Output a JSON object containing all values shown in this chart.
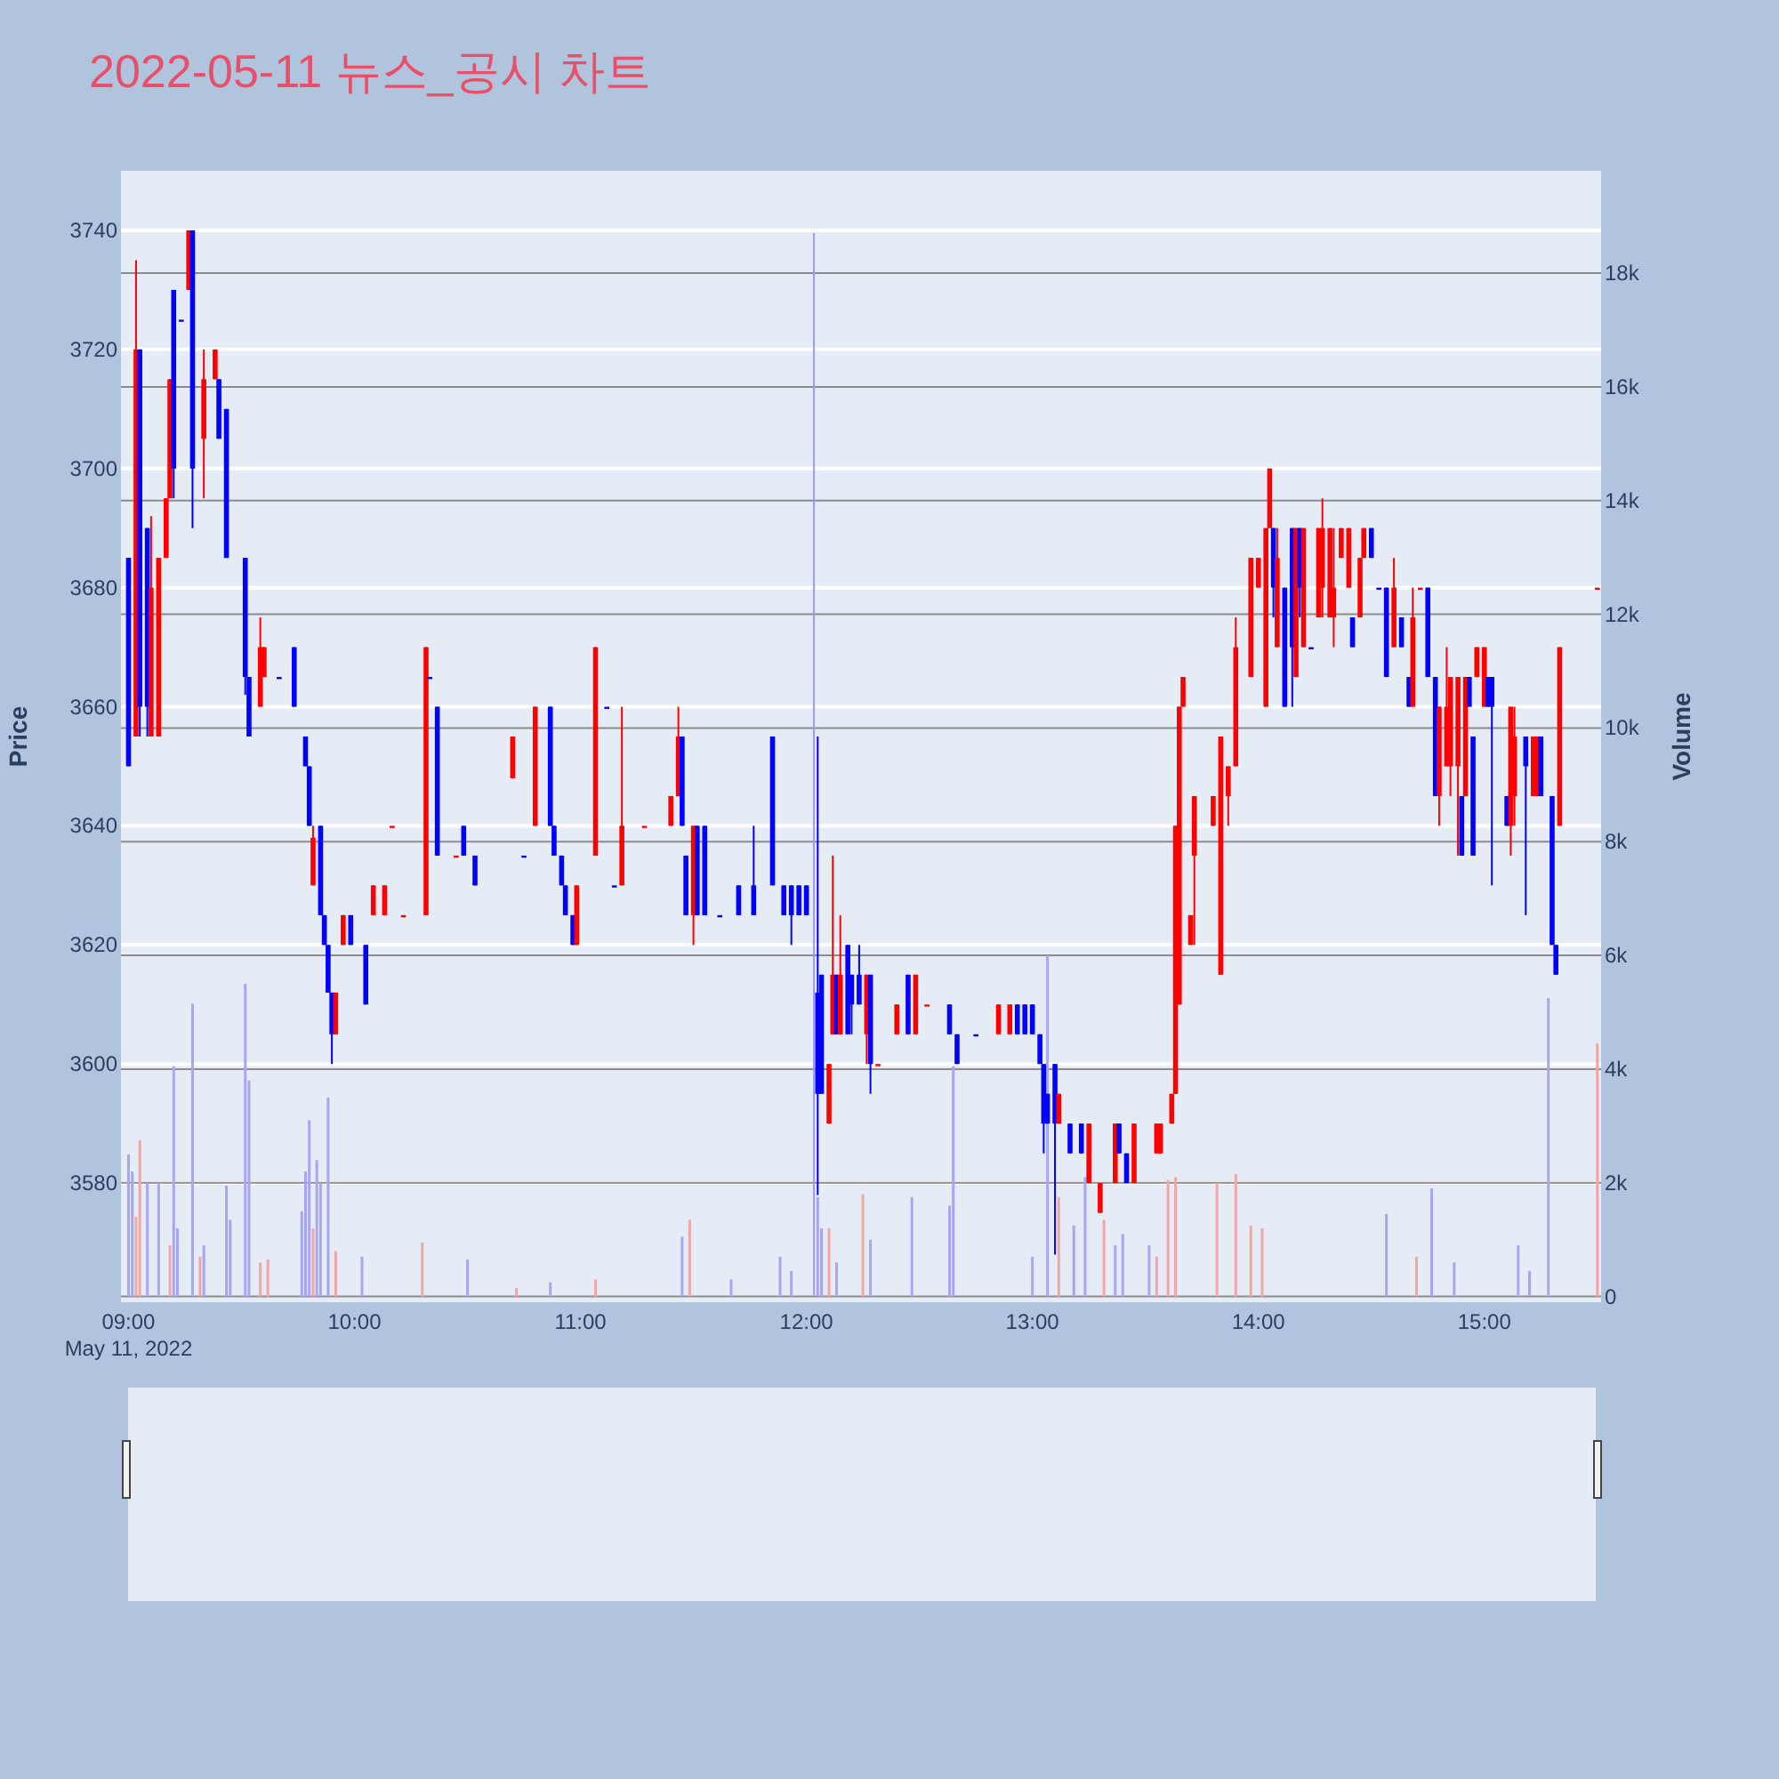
{
  "chart_data": {
    "type": "candlestick",
    "title": "2022-05-11 뉴스_공시 차트",
    "ylabel": "Price",
    "y2label": "Volume",
    "annotations": [
      "May 11, 2022"
    ],
    "xlim": [
      "2022-05-11T08:58",
      "2022-05-11T15:31"
    ],
    "xticks": [
      {
        "value": "2022-05-11T09:00",
        "label": "09:00"
      },
      {
        "value": "2022-05-11T10:00",
        "label": "10:00"
      },
      {
        "value": "2022-05-11T11:00",
        "label": "11:00"
      },
      {
        "value": "2022-05-11T12:00",
        "label": "12:00"
      },
      {
        "value": "2022-05-11T13:00",
        "label": "13:00"
      },
      {
        "value": "2022-05-11T14:00",
        "label": "14:00"
      },
      {
        "value": "2022-05-11T15:00",
        "label": "15:00"
      }
    ],
    "ylim": [
      3560,
      3750
    ],
    "yticks": [
      3580,
      3600,
      3620,
      3640,
      3660,
      3680,
      3700,
      3720,
      3740
    ],
    "y2lim": [
      -100,
      19800
    ],
    "y2ticks": [
      0,
      {
        "value": 2000,
        "label": "2k"
      },
      {
        "value": 4000,
        "label": "4k"
      },
      {
        "value": 6000,
        "label": "6k"
      },
      {
        "value": 8000,
        "label": "8k"
      },
      {
        "value": 10000,
        "label": "10k"
      },
      {
        "value": 12000,
        "label": "12k"
      },
      {
        "value": 14000,
        "label": "14k"
      },
      {
        "value": 16000,
        "label": "16k"
      },
      {
        "value": 18000,
        "label": "18k"
      }
    ],
    "grid": true,
    "ref_lines": [
      {
        "axis": "x",
        "value": "2022-05-11T12:02",
        "color": "#9a9af0"
      }
    ],
    "x": [
      "2022-05-11T09:00",
      "2022-05-11T09:02",
      "2022-05-11T09:03",
      "2022-05-11T09:05",
      "2022-05-11T09:06",
      "2022-05-11T09:08",
      "2022-05-11T09:10",
      "2022-05-11T09:11",
      "2022-05-11T09:12",
      "2022-05-11T09:14",
      "2022-05-11T09:16",
      "2022-05-11T09:17",
      "2022-05-11T09:20",
      "2022-05-11T09:23",
      "2022-05-11T09:24",
      "2022-05-11T09:26",
      "2022-05-11T09:31",
      "2022-05-11T09:32",
      "2022-05-11T09:35",
      "2022-05-11T09:36",
      "2022-05-11T09:40",
      "2022-05-11T09:44",
      "2022-05-11T09:47",
      "2022-05-11T09:48",
      "2022-05-11T09:49",
      "2022-05-11T09:51",
      "2022-05-11T09:52",
      "2022-05-11T09:53",
      "2022-05-11T09:54",
      "2022-05-11T09:55",
      "2022-05-11T09:57",
      "2022-05-11T09:59",
      "2022-05-11T10:03",
      "2022-05-11T10:05",
      "2022-05-11T10:08",
      "2022-05-11T10:10",
      "2022-05-11T10:13",
      "2022-05-11T10:19",
      "2022-05-11T10:20",
      "2022-05-11T10:22",
      "2022-05-11T10:27",
      "2022-05-11T10:29",
      "2022-05-11T10:32",
      "2022-05-11T10:42",
      "2022-05-11T10:45",
      "2022-05-11T10:48",
      "2022-05-11T10:52",
      "2022-05-11T10:53",
      "2022-05-11T10:55",
      "2022-05-11T10:56",
      "2022-05-11T10:58",
      "2022-05-11T10:59",
      "2022-05-11T11:04",
      "2022-05-11T11:07",
      "2022-05-11T11:09",
      "2022-05-11T11:11",
      "2022-05-11T11:17",
      "2022-05-11T11:24",
      "2022-05-11T11:26",
      "2022-05-11T11:27",
      "2022-05-11T11:28",
      "2022-05-11T11:30",
      "2022-05-11T11:31",
      "2022-05-11T11:33",
      "2022-05-11T11:37",
      "2022-05-11T11:42",
      "2022-05-11T11:46",
      "2022-05-11T11:51",
      "2022-05-11T11:54",
      "2022-05-11T11:56",
      "2022-05-11T11:58",
      "2022-05-11T12:00",
      "2022-05-11T12:03",
      "2022-05-11T12:04",
      "2022-05-11T12:06",
      "2022-05-11T12:07",
      "2022-05-11T12:08",
      "2022-05-11T12:09",
      "2022-05-11T12:11",
      "2022-05-11T12:12",
      "2022-05-11T12:14",
      "2022-05-11T12:16",
      "2022-05-11T12:17",
      "2022-05-11T12:19",
      "2022-05-11T12:24",
      "2022-05-11T12:27",
      "2022-05-11T12:29",
      "2022-05-11T12:32",
      "2022-05-11T12:38",
      "2022-05-11T12:40",
      "2022-05-11T12:45",
      "2022-05-11T12:51",
      "2022-05-11T12:54",
      "2022-05-11T12:56",
      "2022-05-11T12:58",
      "2022-05-11T13:00",
      "2022-05-11T13:02",
      "2022-05-11T13:03",
      "2022-05-11T13:04",
      "2022-05-11T13:06",
      "2022-05-11T13:07",
      "2022-05-11T13:10",
      "2022-05-11T13:13",
      "2022-05-11T13:15",
      "2022-05-11T13:18",
      "2022-05-11T13:22",
      "2022-05-11T13:23",
      "2022-05-11T13:25",
      "2022-05-11T13:27",
      "2022-05-11T13:33",
      "2022-05-11T13:34",
      "2022-05-11T13:37",
      "2022-05-11T13:38",
      "2022-05-11T13:39",
      "2022-05-11T13:40",
      "2022-05-11T13:42",
      "2022-05-11T13:43",
      "2022-05-11T13:48",
      "2022-05-11T13:50",
      "2022-05-11T13:52",
      "2022-05-11T13:54",
      "2022-05-11T13:58",
      "2022-05-11T14:00",
      "2022-05-11T14:02",
      "2022-05-11T14:03",
      "2022-05-11T14:04",
      "2022-05-11T14:05",
      "2022-05-11T14:07",
      "2022-05-11T14:09",
      "2022-05-11T14:10",
      "2022-05-11T14:11",
      "2022-05-11T14:12",
      "2022-05-11T14:14",
      "2022-05-11T14:16",
      "2022-05-11T14:17",
      "2022-05-11T14:19",
      "2022-05-11T14:20",
      "2022-05-11T14:22",
      "2022-05-11T14:24",
      "2022-05-11T14:25",
      "2022-05-11T14:27",
      "2022-05-11T14:28",
      "2022-05-11T14:30",
      "2022-05-11T14:32",
      "2022-05-11T14:34",
      "2022-05-11T14:36",
      "2022-05-11T14:38",
      "2022-05-11T14:40",
      "2022-05-11T14:41",
      "2022-05-11T14:43",
      "2022-05-11T14:45",
      "2022-05-11T14:47",
      "2022-05-11T14:48",
      "2022-05-11T14:50",
      "2022-05-11T14:51",
      "2022-05-11T14:53",
      "2022-05-11T14:54",
      "2022-05-11T14:55",
      "2022-05-11T14:56",
      "2022-05-11T14:57",
      "2022-05-11T14:58",
      "2022-05-11T15:00",
      "2022-05-11T15:01",
      "2022-05-11T15:02",
      "2022-05-11T15:06",
      "2022-05-11T15:07",
      "2022-05-11T15:08",
      "2022-05-11T15:11",
      "2022-05-11T15:13",
      "2022-05-11T15:14",
      "2022-05-11T15:15",
      "2022-05-11T15:18",
      "2022-05-11T15:19",
      "2022-05-11T15:20",
      "2022-05-11T15:30"
    ],
    "ohlc": [
      [
        3685,
        3685,
        3650,
        3650
      ],
      [
        3655,
        3735,
        3655,
        3720
      ],
      [
        3720,
        3720,
        3655,
        3660
      ],
      [
        3690,
        3690,
        3655,
        3660
      ],
      [
        3655,
        3692,
        3655,
        3680
      ],
      [
        3655,
        3685,
        3655,
        3685
      ],
      [
        3685,
        3695,
        3685,
        3695
      ],
      [
        3695,
        3715,
        3695,
        3715
      ],
      [
        3730,
        3730,
        3695,
        3700
      ],
      [
        3725,
        3725,
        3725,
        3725
      ],
      [
        3730,
        3740,
        3730,
        3740
      ],
      [
        3740,
        3740,
        3690,
        3700
      ],
      [
        3705,
        3720,
        3695,
        3715
      ],
      [
        3715,
        3720,
        3715,
        3720
      ],
      [
        3715,
        3715,
        3705,
        3705
      ],
      [
        3710,
        3710,
        3685,
        3685
      ],
      [
        3685,
        3685,
        3662,
        3665
      ],
      [
        3665,
        3665,
        3655,
        3655
      ],
      [
        3660,
        3675,
        3660,
        3670
      ],
      [
        3665,
        3670,
        3665,
        3670
      ],
      [
        3665,
        3665,
        3665,
        3665
      ],
      [
        3670,
        3670,
        3660,
        3660
      ],
      [
        3655,
        3655,
        3650,
        3650
      ],
      [
        3650,
        3650,
        3640,
        3640
      ],
      [
        3630,
        3640,
        3630,
        3638
      ],
      [
        3640,
        3640,
        3625,
        3625
      ],
      [
        3625,
        3625,
        3620,
        3620
      ],
      [
        3620,
        3620,
        3612,
        3612
      ],
      [
        3612,
        3612,
        3600,
        3605
      ],
      [
        3605,
        3612,
        3605,
        3612
      ],
      [
        3620,
        3625,
        3620,
        3625
      ],
      [
        3625,
        3625,
        3620,
        3620
      ],
      [
        3620,
        3620,
        3610,
        3610
      ],
      [
        3625,
        3630,
        3625,
        3630
      ],
      [
        3625,
        3630,
        3625,
        3630
      ],
      [
        3640,
        3640,
        3640,
        3640
      ],
      [
        3625,
        3625,
        3625,
        3625
      ],
      [
        3625,
        3670,
        3625,
        3670
      ],
      [
        3665,
        3665,
        3665,
        3665
      ],
      [
        3660,
        3660,
        3635,
        3635
      ],
      [
        3635,
        3635,
        3635,
        3635
      ],
      [
        3640,
        3640,
        3635,
        3635
      ],
      [
        3635,
        3635,
        3630,
        3630
      ],
      [
        3648,
        3655,
        3648,
        3655
      ],
      [
        3635,
        3635,
        3635,
        3635
      ],
      [
        3640,
        3660,
        3640,
        3660
      ],
      [
        3660,
        3660,
        3640,
        3640
      ],
      [
        3640,
        3640,
        3635,
        3635
      ],
      [
        3635,
        3635,
        3630,
        3630
      ],
      [
        3630,
        3630,
        3625,
        3625
      ],
      [
        3625,
        3625,
        3620,
        3620
      ],
      [
        3620,
        3630,
        3620,
        3630
      ],
      [
        3635,
        3670,
        3635,
        3670
      ],
      [
        3660,
        3660,
        3660,
        3660
      ],
      [
        3630,
        3630,
        3630,
        3630
      ],
      [
        3630,
        3660,
        3630,
        3640
      ],
      [
        3640,
        3640,
        3640,
        3640
      ],
      [
        3640,
        3645,
        3640,
        3645
      ],
      [
        3645,
        3660,
        3645,
        3655
      ],
      [
        3655,
        3655,
        3640,
        3640
      ],
      [
        3635,
        3635,
        3625,
        3625
      ],
      [
        3625,
        3640,
        3620,
        3640
      ],
      [
        3640,
        3640,
        3625,
        3625
      ],
      [
        3640,
        3640,
        3625,
        3625
      ],
      [
        3625,
        3625,
        3625,
        3625
      ],
      [
        3630,
        3630,
        3625,
        3625
      ],
      [
        3630,
        3640,
        3625,
        3625
      ],
      [
        3655,
        3655,
        3630,
        3630
      ],
      [
        3630,
        3630,
        3625,
        3625
      ],
      [
        3630,
        3630,
        3620,
        3625
      ],
      [
        3630,
        3630,
        3625,
        3625
      ],
      [
        3630,
        3630,
        3625,
        3625
      ],
      [
        3612,
        3655,
        3578,
        3595
      ],
      [
        3615,
        3615,
        3595,
        3595
      ],
      [
        3590,
        3600,
        3590,
        3600
      ],
      [
        3605,
        3635,
        3605,
        3615
      ],
      [
        3615,
        3615,
        3605,
        3605
      ],
      [
        3605,
        3625,
        3605,
        3615
      ],
      [
        3620,
        3620,
        3605,
        3605
      ],
      [
        3615,
        3615,
        3605,
        3610
      ],
      [
        3615,
        3620,
        3610,
        3610
      ],
      [
        3605,
        3615,
        3600,
        3615
      ],
      [
        3615,
        3615,
        3595,
        3600
      ],
      [
        3600,
        3600,
        3600,
        3600
      ],
      [
        3605,
        3610,
        3605,
        3610
      ],
      [
        3615,
        3615,
        3605,
        3605
      ],
      [
        3605,
        3615,
        3605,
        3615
      ],
      [
        3610,
        3610,
        3610,
        3610
      ],
      [
        3610,
        3610,
        3605,
        3605
      ],
      [
        3605,
        3605,
        3600,
        3600
      ],
      [
        3605,
        3605,
        3605,
        3605
      ],
      [
        3605,
        3610,
        3605,
        3610
      ],
      [
        3605,
        3610,
        3605,
        3610
      ],
      [
        3610,
        3610,
        3605,
        3605
      ],
      [
        3610,
        3610,
        3605,
        3605
      ],
      [
        3610,
        3610,
        3605,
        3605
      ],
      [
        3605,
        3605,
        3600,
        3600
      ],
      [
        3600,
        3600,
        3585,
        3590
      ],
      [
        3595,
        3595,
        3590,
        3590
      ],
      [
        3600,
        3600,
        3568,
        3590
      ],
      [
        3590,
        3595,
        3590,
        3595
      ],
      [
        3590,
        3590,
        3585,
        3585
      ],
      [
        3590,
        3590,
        3585,
        3585
      ],
      [
        3580,
        3590,
        3580,
        3590
      ],
      [
        3575,
        3580,
        3575,
        3580
      ],
      [
        3580,
        3590,
        3580,
        3590
      ],
      [
        3590,
        3590,
        3585,
        3585
      ],
      [
        3585,
        3585,
        3580,
        3580
      ],
      [
        3580,
        3590,
        3580,
        3590
      ],
      [
        3585,
        3590,
        3585,
        3590
      ],
      [
        3585,
        3590,
        3585,
        3590
      ],
      [
        3590,
        3595,
        3590,
        3595
      ],
      [
        3595,
        3640,
        3595,
        3640
      ],
      [
        3610,
        3660,
        3610,
        3660
      ],
      [
        3660,
        3665,
        3660,
        3665
      ],
      [
        3620,
        3625,
        3620,
        3625
      ],
      [
        3635,
        3645,
        3620,
        3645
      ],
      [
        3640,
        3645,
        3640,
        3645
      ],
      [
        3615,
        3655,
        3615,
        3655
      ],
      [
        3645,
        3650,
        3640,
        3650
      ],
      [
        3650,
        3675,
        3650,
        3670
      ],
      [
        3665,
        3685,
        3665,
        3685
      ],
      [
        3680,
        3685,
        3680,
        3685
      ],
      [
        3660,
        3690,
        3660,
        3690
      ],
      [
        3690,
        3700,
        3690,
        3700
      ],
      [
        3690,
        3690,
        3675,
        3680
      ],
      [
        3670,
        3690,
        3670,
        3685
      ],
      [
        3680,
        3680,
        3660,
        3660
      ],
      [
        3690,
        3690,
        3660,
        3670
      ],
      [
        3665,
        3690,
        3665,
        3690
      ],
      [
        3690,
        3690,
        3675,
        3680
      ],
      [
        3670,
        3690,
        3670,
        3690
      ],
      [
        3670,
        3670,
        3670,
        3670
      ],
      [
        3675,
        3690,
        3675,
        3690
      ],
      [
        3680,
        3695,
        3675,
        3690
      ],
      [
        3675,
        3690,
        3675,
        3690
      ],
      [
        3675,
        3690,
        3670,
        3680
      ],
      [
        3685,
        3690,
        3685,
        3690
      ],
      [
        3680,
        3690,
        3680,
        3690
      ],
      [
        3675,
        3675,
        3670,
        3670
      ],
      [
        3675,
        3685,
        3675,
        3685
      ],
      [
        3685,
        3690,
        3685,
        3690
      ],
      [
        3690,
        3690,
        3685,
        3685
      ],
      [
        3680,
        3680,
        3680,
        3680
      ],
      [
        3680,
        3680,
        3665,
        3665
      ],
      [
        3670,
        3685,
        3670,
        3680
      ],
      [
        3675,
        3675,
        3670,
        3670
      ],
      [
        3665,
        3665,
        3660,
        3660
      ],
      [
        3660,
        3680,
        3660,
        3675
      ],
      [
        3680,
        3680,
        3680,
        3680
      ],
      [
        3680,
        3680,
        3665,
        3665
      ],
      [
        3665,
        3665,
        3645,
        3645
      ],
      [
        3645,
        3660,
        3640,
        3660
      ],
      [
        3650,
        3670,
        3650,
        3660
      ],
      [
        3650,
        3665,
        3645,
        3665
      ],
      [
        3650,
        3665,
        3635,
        3665
      ],
      [
        3645,
        3645,
        3635,
        3635
      ],
      [
        3645,
        3665,
        3645,
        3665
      ],
      [
        3665,
        3665,
        3660,
        3660
      ],
      [
        3655,
        3655,
        3635,
        3635
      ],
      [
        3665,
        3670,
        3665,
        3670
      ],
      [
        3660,
        3670,
        3660,
        3670
      ],
      [
        3665,
        3665,
        3660,
        3660
      ],
      [
        3665,
        3665,
        3630,
        3660
      ],
      [
        3645,
        3645,
        3640,
        3640
      ],
      [
        3640,
        3660,
        3635,
        3660
      ],
      [
        3645,
        3660,
        3640,
        3655
      ],
      [
        3655,
        3655,
        3625,
        3650
      ],
      [
        3645,
        3655,
        3645,
        3655
      ],
      [
        3645,
        3655,
        3645,
        3655
      ],
      [
        3655,
        3655,
        3645,
        3645
      ],
      [
        3645,
        3645,
        3620,
        3620
      ],
      [
        3620,
        3620,
        3615,
        3615
      ],
      [
        3640,
        3670,
        3640,
        3670
      ],
      [
        3680,
        3680,
        3680,
        3680
      ]
    ],
    "colors": [
      "#0000ff",
      "#ff0000",
      "#0000ff",
      "#0000ff",
      "#ff0000",
      "#ff0000",
      "#ff0000",
      "#ff0000",
      "#0000ff",
      "#0000ff",
      "#ff0000",
      "#0000ff",
      "#ff0000",
      "#ff0000",
      "#0000ff",
      "#0000ff",
      "#0000ff",
      "#0000ff",
      "#ff0000",
      "#ff0000",
      "#0000ff",
      "#0000ff",
      "#0000ff",
      "#0000ff",
      "#ff0000",
      "#0000ff",
      "#0000ff",
      "#0000ff",
      "#0000ff",
      "#ff0000",
      "#ff0000",
      "#0000ff",
      "#0000ff",
      "#ff0000",
      "#ff0000",
      "#ff0000",
      "#ff0000",
      "#ff0000",
      "#0000ff",
      "#0000ff",
      "#ff0000",
      "#0000ff",
      "#0000ff",
      "#ff0000",
      "#0000ff",
      "#ff0000",
      "#0000ff",
      "#0000ff",
      "#0000ff",
      "#0000ff",
      "#0000ff",
      "#ff0000",
      "#ff0000",
      "#0000ff",
      "#0000ff",
      "#ff0000",
      "#ff0000",
      "#ff0000",
      "#ff0000",
      "#0000ff",
      "#0000ff",
      "#ff0000",
      "#0000ff",
      "#0000ff",
      "#0000ff",
      "#0000ff",
      "#0000ff",
      "#0000ff",
      "#0000ff",
      "#0000ff",
      "#0000ff",
      "#0000ff",
      "#0000ff",
      "#0000ff",
      "#ff0000",
      "#ff0000",
      "#0000ff",
      "#ff0000",
      "#0000ff",
      "#0000ff",
      "#0000ff",
      "#ff0000",
      "#0000ff",
      "#ff0000",
      "#ff0000",
      "#0000ff",
      "#ff0000",
      "#ff0000",
      "#0000ff",
      "#0000ff",
      "#0000ff",
      "#ff0000",
      "#ff0000",
      "#0000ff",
      "#0000ff",
      "#0000ff",
      "#0000ff",
      "#0000ff",
      "#0000ff",
      "#0000ff",
      "#ff0000",
      "#0000ff",
      "#0000ff",
      "#ff0000",
      "#ff0000",
      "#ff0000",
      "#0000ff",
      "#0000ff",
      "#ff0000",
      "#ff0000",
      "#ff0000",
      "#ff0000",
      "#ff0000",
      "#ff0000",
      "#ff0000",
      "#ff0000",
      "#ff0000",
      "#ff0000",
      "#ff0000",
      "#ff0000",
      "#ff0000",
      "#ff0000",
      "#ff0000",
      "#ff0000",
      "#ff0000",
      "#0000ff",
      "#ff0000",
      "#0000ff",
      "#0000ff",
      "#ff0000",
      "#0000ff",
      "#ff0000",
      "#0000ff",
      "#ff0000",
      "#ff0000",
      "#ff0000",
      "#ff0000",
      "#ff0000",
      "#ff0000",
      "#0000ff",
      "#ff0000",
      "#ff0000",
      "#0000ff",
      "#0000ff",
      "#0000ff",
      "#ff0000",
      "#0000ff",
      "#0000ff",
      "#ff0000",
      "#ff0000",
      "#0000ff",
      "#0000ff",
      "#ff0000",
      "#ff0000",
      "#ff0000",
      "#ff0000",
      "#0000ff",
      "#ff0000",
      "#0000ff",
      "#0000ff",
      "#ff0000",
      "#ff0000",
      "#0000ff",
      "#0000ff",
      "#0000ff",
      "#ff0000",
      "#ff0000",
      "#0000ff",
      "#ff0000",
      "#ff0000",
      "#0000ff",
      "#0000ff",
      "#0000ff",
      "#ff0000",
      "#ff0000"
    ],
    "series": [
      {
        "type": "bar",
        "axis": "y2",
        "x": [
          "2022-05-11T09:00",
          "2022-05-11T09:01",
          "2022-05-11T09:02",
          "2022-05-11T09:03",
          "2022-05-11T09:05",
          "2022-05-11T09:08",
          "2022-05-11T09:11",
          "2022-05-11T09:12",
          "2022-05-11T09:13",
          "2022-05-11T09:17",
          "2022-05-11T09:19",
          "2022-05-11T09:20",
          "2022-05-11T09:26",
          "2022-05-11T09:27",
          "2022-05-11T09:31",
          "2022-05-11T09:32",
          "2022-05-11T09:35",
          "2022-05-11T09:37",
          "2022-05-11T09:46",
          "2022-05-11T09:47",
          "2022-05-11T09:48",
          "2022-05-11T09:49",
          "2022-05-11T09:50",
          "2022-05-11T09:51",
          "2022-05-11T09:53",
          "2022-05-11T09:55",
          "2022-05-11T10:02",
          "2022-05-11T10:18",
          "2022-05-11T10:30",
          "2022-05-11T10:43",
          "2022-05-11T10:52",
          "2022-05-11T11:04",
          "2022-05-11T11:27",
          "2022-05-11T11:29",
          "2022-05-11T11:40",
          "2022-05-11T11:53",
          "2022-05-11T11:56",
          "2022-05-11T12:03",
          "2022-05-11T12:04",
          "2022-05-11T12:06",
          "2022-05-11T12:08",
          "2022-05-11T12:15",
          "2022-05-11T12:17",
          "2022-05-11T12:28",
          "2022-05-11T12:38",
          "2022-05-11T12:39",
          "2022-05-11T13:00",
          "2022-05-11T13:04",
          "2022-05-11T13:07",
          "2022-05-11T13:11",
          "2022-05-11T13:14",
          "2022-05-11T13:19",
          "2022-05-11T13:22",
          "2022-05-11T13:24",
          "2022-05-11T13:31",
          "2022-05-11T13:33",
          "2022-05-11T13:36",
          "2022-05-11T13:38",
          "2022-05-11T13:49",
          "2022-05-11T13:54",
          "2022-05-11T13:58",
          "2022-05-11T14:01",
          "2022-05-11T14:34",
          "2022-05-11T14:42",
          "2022-05-11T14:46",
          "2022-05-11T14:52",
          "2022-05-11T15:09",
          "2022-05-11T15:12",
          "2022-05-11T15:17",
          "2022-05-11T15:30"
        ],
        "values": [
          2500,
          2200,
          1400,
          2750,
          2000,
          2000,
          900,
          4050,
          1200,
          5150,
          700,
          900,
          1950,
          1350,
          5500,
          3800,
          600,
          650,
          1500,
          2200,
          3100,
          1200,
          2400,
          2000,
          3500,
          800,
          700,
          950,
          650,
          150,
          250,
          300,
          1050,
          1350,
          300,
          700,
          450,
          1750,
          1200,
          1200,
          600,
          1800,
          1000,
          1750,
          1600,
          4050,
          700,
          6000,
          1750,
          1250,
          2100,
          1350,
          900,
          1100,
          900,
          700,
          2050,
          2100,
          2000,
          2150,
          1250,
          1200,
          1450,
          700,
          1900,
          600,
          900,
          450,
          5250,
          4450
        ],
        "colors": [
          "#a6a6f2",
          "#a6a6f2",
          "#f2a6a6",
          "#f2a6a6",
          "#a6a6f2",
          "#a6a6f2",
          "#f2a6a6",
          "#a6a6f2",
          "#a6a6f2",
          "#a6a6f2",
          "#f2a6a6",
          "#a6a6f2",
          "#a6a6f2",
          "#a6a6f2",
          "#a6a6f2",
          "#a6a6f2",
          "#f2a6a6",
          "#f2a6a6",
          "#a6a6f2",
          "#a6a6f2",
          "#a6a6f2",
          "#f2a6a6",
          "#a6a6f2",
          "#a6a6f2",
          "#a6a6f2",
          "#f2a6a6",
          "#a6a6f2",
          "#f2a6a6",
          "#a6a6f2",
          "#f2a6a6",
          "#a6a6f2",
          "#f2a6a6",
          "#a6a6f2",
          "#f2a6a6",
          "#a6a6f2",
          "#a6a6f2",
          "#a6a6f2",
          "#a6a6f2",
          "#a6a6f2",
          "#f2a6a6",
          "#a6a6f2",
          "#f2a6a6",
          "#a6a6f2",
          "#a6a6f2",
          "#a6a6f2",
          "#a6a6f2",
          "#a6a6f2",
          "#a6a6f2",
          "#f2a6a6",
          "#a6a6f2",
          "#a6a6f2",
          "#f2a6a6",
          "#a6a6f2",
          "#a6a6f2",
          "#a6a6f2",
          "#f2a6a6",
          "#f2a6a6",
          "#f2a6a6",
          "#f2a6a6",
          "#f2a6a6",
          "#f2a6a6",
          "#f2a6a6",
          "#a6a6f2",
          "#f2a6a6",
          "#a6a6f2",
          "#a6a6f2",
          "#a6a6f2",
          "#a6a6f2",
          "#a6a6f2",
          "#f2a6a6"
        ]
      }
    ]
  }
}
